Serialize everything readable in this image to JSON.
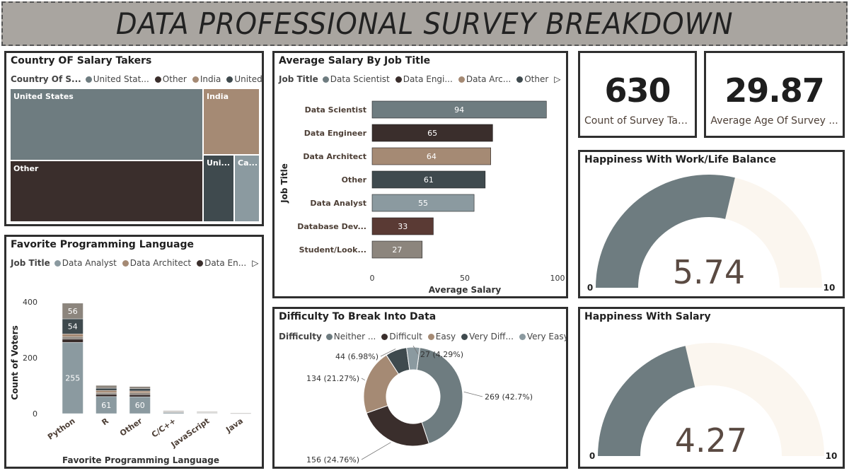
{
  "header": {
    "title": "DATA PROFESSIONAL SURVEY BREAKDOWN"
  },
  "colors": {
    "slate": "#6e7c80",
    "dark": "#3a2e2c",
    "tan": "#a58a74",
    "charcoal": "#3f4a4e",
    "light_slate": "#8b9aa0",
    "maroon": "#5a3a34",
    "taupe": "#8c857d",
    "cream": "#fbf6ef"
  },
  "country_card": {
    "title": "Country OF Salary Takers",
    "legend_title": "Country Of S...",
    "legend": [
      {
        "label": "United Stat...",
        "color": "#6e7c80"
      },
      {
        "label": "Other",
        "color": "#3a2e2c"
      },
      {
        "label": "India",
        "color": "#a58a74"
      },
      {
        "label": "United Ki...",
        "color": "#3f4a4e"
      }
    ],
    "cells": [
      {
        "label": "United States",
        "color": "#6e7c80"
      },
      {
        "label": "India",
        "color": "#a58a74"
      },
      {
        "label": "Other",
        "color": "#3a2e2c"
      },
      {
        "label": "Uni...",
        "color": "#3f4a4e"
      },
      {
        "label": "Ca...",
        "color": "#8b9aa0"
      }
    ]
  },
  "salary_card": {
    "title": "Average Salary By Job Title",
    "legend_title": "Job Title",
    "legend": [
      {
        "label": "Data Scientist",
        "color": "#6e7c80"
      },
      {
        "label": "Data Engi...",
        "color": "#3a2e2c"
      },
      {
        "label": "Data Arc...",
        "color": "#a58a74"
      },
      {
        "label": "Other",
        "color": "#3f4a4e"
      }
    ],
    "chart_data": {
      "type": "bar",
      "orientation": "horizontal",
      "categories": [
        "Data Scientist",
        "Data Engineer",
        "Data Architect",
        "Other",
        "Data Analyst",
        "Database Dev...",
        "Student/Look..."
      ],
      "values": [
        94,
        65,
        64,
        61,
        55,
        33,
        27
      ],
      "colors": [
        "#6e7c80",
        "#3a2e2c",
        "#a58a74",
        "#3f4a4e",
        "#8b9aa0",
        "#5a3a34",
        "#8c857d"
      ],
      "xlabel": "Average Salary",
      "ylabel": "Job Title",
      "xlim": [
        0,
        100
      ],
      "xticks": [
        "0",
        "50",
        "100"
      ]
    }
  },
  "kpis": [
    {
      "value": "630",
      "label": "Count of Survey Tak..."
    },
    {
      "value": "29.87",
      "label": "Average Age Of Survey ..."
    }
  ],
  "worklife_card": {
    "title": "Happiness With Work/Life Balance",
    "chart_data": {
      "type": "gauge",
      "value": 5.74,
      "min": 0,
      "max": 10,
      "value_label": "5.74",
      "min_label": "0",
      "max_label": "10"
    }
  },
  "salary_happy_card": {
    "title": "Happiness With Salary",
    "chart_data": {
      "type": "gauge",
      "value": 4.27,
      "min": 0,
      "max": 10,
      "value_label": "4.27",
      "min_label": "0",
      "max_label": "10"
    }
  },
  "language_card": {
    "title": "Favorite Programming Language",
    "legend_title": "Job Title",
    "legend": [
      {
        "label": "Data Analyst",
        "color": "#8b9aa0"
      },
      {
        "label": "Data Architect",
        "color": "#a58a74"
      },
      {
        "label": "Data En...",
        "color": "#3a2e2c"
      }
    ],
    "chart_data": {
      "type": "bar",
      "stacked": true,
      "categories": [
        "Python",
        "R",
        "Other",
        "C/C++",
        "JavaScript",
        "Java"
      ],
      "segments": [
        {
          "values": [
            255,
            61,
            60,
            4,
            2,
            1
          ],
          "color": "#8b9aa0",
          "label_shown": [
            true,
            true,
            true,
            false,
            false,
            false
          ]
        },
        {
          "values": [
            12,
            8,
            8,
            2,
            1,
            0
          ],
          "color": "#3a2e2c",
          "label_shown": [
            false,
            false,
            false,
            false,
            false,
            false
          ]
        },
        {
          "values": [
            8,
            6,
            6,
            1,
            1,
            1
          ],
          "color": "#8c857d",
          "label_shown": [
            false,
            false,
            false,
            false,
            false,
            false
          ]
        },
        {
          "values": [
            10,
            8,
            7,
            2,
            1,
            0
          ],
          "color": "#a58a74",
          "label_shown": [
            false,
            false,
            false,
            false,
            false,
            false
          ]
        },
        {
          "values": [
            54,
            8,
            8,
            1,
            1,
            0
          ],
          "color": "#3f4a4e",
          "label_shown": [
            true,
            false,
            false,
            false,
            false,
            false
          ]
        },
        {
          "values": [
            56,
            10,
            8,
            1,
            1,
            0
          ],
          "color": "#8c857d",
          "label_shown": [
            true,
            false,
            false,
            false,
            false,
            false
          ]
        }
      ],
      "xlabel": "Favorite Programming Language",
      "ylabel": "Count of Voters",
      "ylim": [
        0,
        430
      ],
      "yticks": [
        0,
        200,
        400
      ]
    }
  },
  "difficulty_card": {
    "title": "Difficulty To Break Into Data",
    "legend_title": "Difficulty",
    "legend": [
      {
        "label": "Neither ...",
        "color": "#6e7c80"
      },
      {
        "label": "Difficult",
        "color": "#3a2e2c"
      },
      {
        "label": "Easy",
        "color": "#a58a74"
      },
      {
        "label": "Very Diff...",
        "color": "#3f4a4e"
      },
      {
        "label": "Very Easy",
        "color": "#8b9aa0"
      }
    ],
    "chart_data": {
      "type": "pie",
      "donut": true,
      "slices": [
        {
          "name": "Neither ...",
          "value": 269,
          "label": "269 (42.7%)",
          "color": "#6e7c80"
        },
        {
          "name": "Difficult",
          "value": 156,
          "label": "156 (24.76%)",
          "color": "#3a2e2c"
        },
        {
          "name": "Easy",
          "value": 134,
          "label": "134 (21.27%)",
          "color": "#a58a74"
        },
        {
          "name": "Very Diff...",
          "value": 44,
          "label": "44 (6.98%)",
          "color": "#3f4a4e"
        },
        {
          "name": "Very Easy",
          "value": 27,
          "label": "27 (4.29%)",
          "color": "#8b9aa0"
        }
      ]
    }
  }
}
